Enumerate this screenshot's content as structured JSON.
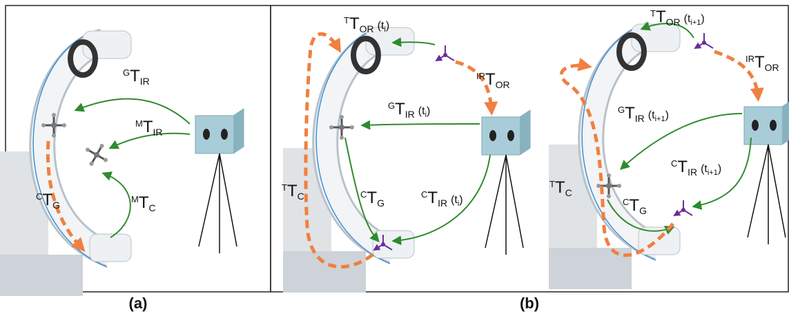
{
  "panels": [
    {
      "label": "(a)",
      "annotations": [
        {
          "sup": "G",
          "base": "T",
          "sub": "IR"
        },
        {
          "sup": "M",
          "base": "T",
          "sub": "IR"
        },
        {
          "sup": "C",
          "base": "T",
          "sub": "G"
        },
        {
          "sup": "M",
          "base": "T",
          "sub": "C"
        }
      ]
    },
    {
      "label": "(b)",
      "annotations": [
        {
          "sup": "T",
          "base": "T",
          "sub": "OR",
          "arg": "(t",
          "arg_sub": "i",
          "arg_close": ")"
        },
        {
          "sup": "IR",
          "base": "T",
          "sub": "OR"
        },
        {
          "sup": "G",
          "base": "T",
          "sub": "IR",
          "arg": "(t",
          "arg_sub": "i",
          "arg_close": ")"
        },
        {
          "sup": "C",
          "base": "T",
          "sub": "IR",
          "arg": "(t",
          "arg_sub": "i",
          "arg_close": ")"
        },
        {
          "sup": "T",
          "base": "T",
          "sub": "C"
        },
        {
          "sup": "C",
          "base": "T",
          "sub": "G"
        },
        {
          "sup": "T",
          "base": "T",
          "sub": "OR",
          "arg": "(t",
          "arg_sub": "i+1",
          "arg_close": ")"
        },
        {
          "sup": "IR",
          "base": "T",
          "sub": "OR"
        },
        {
          "sup": "G",
          "base": "T",
          "sub": "IR",
          "arg": "(t",
          "arg_sub": "i+1",
          "arg_close": ")"
        },
        {
          "sup": "C",
          "base": "T",
          "sub": "IR",
          "arg": "(t",
          "arg_sub": "i+1",
          "arg_close": ")"
        },
        {
          "sup": "T",
          "base": "T",
          "sub": "C"
        },
        {
          "sup": "C",
          "base": "T",
          "sub": "G"
        }
      ]
    }
  ]
}
